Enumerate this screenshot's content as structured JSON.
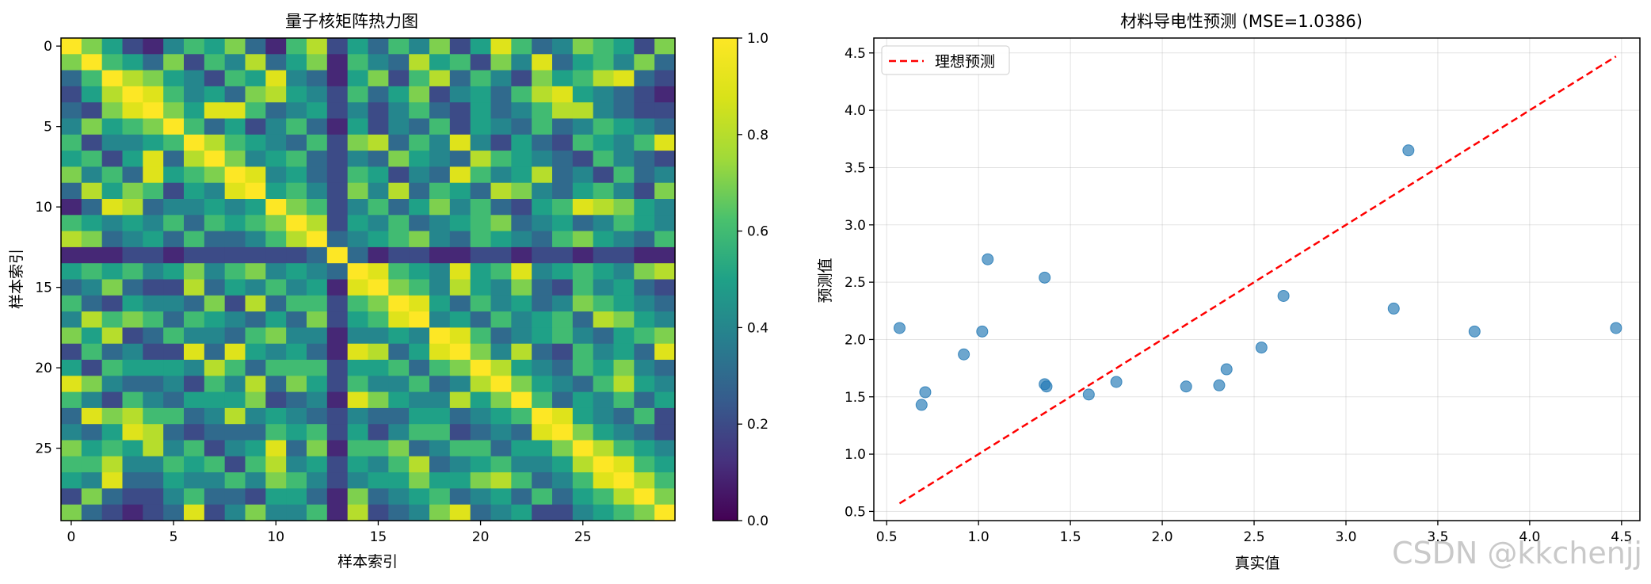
{
  "chart_data": [
    {
      "type": "heatmap",
      "title": "量子核矩阵热力图",
      "xlabel": "样本索引",
      "ylabel": "样本索引",
      "size": 30,
      "xlim": [
        -0.5,
        29.5
      ],
      "ylim": [
        29.5,
        -0.5
      ],
      "xticks": [
        0,
        5,
        10,
        15,
        20,
        25
      ],
      "yticks": [
        0,
        5,
        10,
        15,
        20,
        25
      ],
      "colormap": "viridis",
      "colorbar": {
        "min": 0.0,
        "max": 1.0,
        "ticks": [
          "0.0",
          "0.2",
          "0.4",
          "0.6",
          "0.8",
          "1.0"
        ]
      },
      "diagonal_value": 1.0,
      "values": [
        [
          1.0,
          0.7,
          0.5,
          0.2,
          0.1,
          0.4,
          0.6,
          0.5,
          0.7,
          0.3,
          0.1,
          0.6,
          0.8,
          0.2,
          0.5,
          0.3,
          0.6,
          0.4,
          0.7,
          0.2,
          0.5,
          0.9,
          0.6,
          0.3,
          0.4,
          0.7,
          0.6,
          0.5,
          0.2,
          0.7
        ],
        [
          0.7,
          1.0,
          0.6,
          0.5,
          0.3,
          0.7,
          0.2,
          0.6,
          0.4,
          0.8,
          0.3,
          0.5,
          0.7,
          0.1,
          0.6,
          0.4,
          0.3,
          0.8,
          0.5,
          0.6,
          0.2,
          0.7,
          0.4,
          0.9,
          0.3,
          0.5,
          0.6,
          0.4,
          0.7,
          0.3
        ],
        [
          0.3,
          0.6,
          1.0,
          0.8,
          0.7,
          0.5,
          0.4,
          0.2,
          0.6,
          0.5,
          0.9,
          0.4,
          0.3,
          0.1,
          0.5,
          0.7,
          0.2,
          0.6,
          0.8,
          0.3,
          0.6,
          0.4,
          0.2,
          0.7,
          0.5,
          0.6,
          0.8,
          0.9,
          0.3,
          0.2
        ],
        [
          0.2,
          0.5,
          0.8,
          1.0,
          0.9,
          0.6,
          0.4,
          0.5,
          0.3,
          0.7,
          0.8,
          0.5,
          0.4,
          0.2,
          0.6,
          0.3,
          0.5,
          0.7,
          0.2,
          0.4,
          0.5,
          0.3,
          0.6,
          0.8,
          0.9,
          0.5,
          0.4,
          0.3,
          0.2,
          0.1
        ],
        [
          0.3,
          0.2,
          0.7,
          0.9,
          1.0,
          0.7,
          0.5,
          0.9,
          0.9,
          0.6,
          0.3,
          0.4,
          0.5,
          0.2,
          0.4,
          0.2,
          0.4,
          0.6,
          0.3,
          0.2,
          0.5,
          0.3,
          0.4,
          0.6,
          0.8,
          0.8,
          0.4,
          0.3,
          0.2,
          0.2
        ],
        [
          0.4,
          0.7,
          0.5,
          0.6,
          0.7,
          1.0,
          0.6,
          0.3,
          0.5,
          0.2,
          0.4,
          0.6,
          0.3,
          0.1,
          0.5,
          0.2,
          0.4,
          0.3,
          0.6,
          0.2,
          0.5,
          0.4,
          0.3,
          0.6,
          0.3,
          0.4,
          0.6,
          0.5,
          0.4,
          0.3
        ],
        [
          0.6,
          0.2,
          0.4,
          0.4,
          0.5,
          0.6,
          1.0,
          0.8,
          0.6,
          0.5,
          0.4,
          0.3,
          0.6,
          0.2,
          0.7,
          0.8,
          0.3,
          0.6,
          0.4,
          0.9,
          0.4,
          0.2,
          0.5,
          0.3,
          0.2,
          0.6,
          0.5,
          0.4,
          0.6,
          0.9
        ],
        [
          0.5,
          0.6,
          0.2,
          0.5,
          0.9,
          0.3,
          0.8,
          1.0,
          0.7,
          0.4,
          0.5,
          0.6,
          0.3,
          0.2,
          0.4,
          0.3,
          0.7,
          0.5,
          0.4,
          0.3,
          0.8,
          0.6,
          0.5,
          0.4,
          0.3,
          0.2,
          0.6,
          0.4,
          0.3,
          0.2
        ],
        [
          0.7,
          0.4,
          0.6,
          0.3,
          0.9,
          0.5,
          0.6,
          0.7,
          1.0,
          0.9,
          0.4,
          0.5,
          0.3,
          0.2,
          0.6,
          0.5,
          0.2,
          0.4,
          0.3,
          0.9,
          0.6,
          0.4,
          0.5,
          0.8,
          0.3,
          0.4,
          0.2,
          0.6,
          0.3,
          0.4
        ],
        [
          0.3,
          0.8,
          0.5,
          0.7,
          0.6,
          0.2,
          0.5,
          0.4,
          0.9,
          1.0,
          0.5,
          0.6,
          0.4,
          0.2,
          0.7,
          0.4,
          0.8,
          0.3,
          0.6,
          0.5,
          0.3,
          0.8,
          0.7,
          0.4,
          0.3,
          0.5,
          0.6,
          0.4,
          0.2,
          0.7
        ],
        [
          0.1,
          0.3,
          0.9,
          0.8,
          0.3,
          0.4,
          0.4,
          0.5,
          0.4,
          0.5,
          1.0,
          0.7,
          0.6,
          0.2,
          0.4,
          0.6,
          0.3,
          0.5,
          0.7,
          0.4,
          0.6,
          0.3,
          0.2,
          0.5,
          0.6,
          0.9,
          0.8,
          0.7,
          0.5,
          0.4
        ],
        [
          0.6,
          0.5,
          0.4,
          0.5,
          0.4,
          0.6,
          0.3,
          0.6,
          0.5,
          0.6,
          0.7,
          1.0,
          0.8,
          0.2,
          0.5,
          0.4,
          0.6,
          0.3,
          0.4,
          0.5,
          0.6,
          0.7,
          0.3,
          0.4,
          0.5,
          0.3,
          0.4,
          0.6,
          0.5,
          0.4
        ],
        [
          0.8,
          0.7,
          0.3,
          0.4,
          0.5,
          0.3,
          0.6,
          0.3,
          0.3,
          0.4,
          0.6,
          0.8,
          1.0,
          0.3,
          0.4,
          0.5,
          0.6,
          0.7,
          0.4,
          0.3,
          0.6,
          0.5,
          0.4,
          0.3,
          0.6,
          0.7,
          0.5,
          0.4,
          0.3,
          0.6
        ],
        [
          0.1,
          0.1,
          0.1,
          0.2,
          0.2,
          0.1,
          0.2,
          0.2,
          0.2,
          0.2,
          0.2,
          0.2,
          0.3,
          1.0,
          0.3,
          0.1,
          0.2,
          0.2,
          0.1,
          0.1,
          0.2,
          0.2,
          0.1,
          0.2,
          0.2,
          0.1,
          0.2,
          0.2,
          0.1,
          0.1
        ],
        [
          0.5,
          0.6,
          0.5,
          0.6,
          0.4,
          0.5,
          0.7,
          0.4,
          0.6,
          0.7,
          0.4,
          0.5,
          0.4,
          0.3,
          1.0,
          0.9,
          0.6,
          0.5,
          0.4,
          0.9,
          0.5,
          0.6,
          0.9,
          0.4,
          0.5,
          0.6,
          0.5,
          0.4,
          0.7,
          0.8
        ],
        [
          0.3,
          0.4,
          0.7,
          0.3,
          0.2,
          0.2,
          0.8,
          0.3,
          0.5,
          0.4,
          0.6,
          0.4,
          0.5,
          0.1,
          0.9,
          1.0,
          0.7,
          0.6,
          0.4,
          0.8,
          0.5,
          0.4,
          0.7,
          0.3,
          0.2,
          0.6,
          0.4,
          0.5,
          0.3,
          0.2
        ],
        [
          0.6,
          0.3,
          0.2,
          0.5,
          0.4,
          0.4,
          0.3,
          0.7,
          0.2,
          0.8,
          0.3,
          0.6,
          0.6,
          0.2,
          0.6,
          0.7,
          1.0,
          0.9,
          0.5,
          0.3,
          0.6,
          0.4,
          0.5,
          0.3,
          0.4,
          0.7,
          0.6,
          0.5,
          0.4,
          0.3
        ],
        [
          0.4,
          0.8,
          0.6,
          0.7,
          0.6,
          0.3,
          0.6,
          0.5,
          0.4,
          0.3,
          0.5,
          0.3,
          0.7,
          0.2,
          0.5,
          0.6,
          0.9,
          1.0,
          0.4,
          0.5,
          0.3,
          0.6,
          0.4,
          0.5,
          0.6,
          0.3,
          0.8,
          0.7,
          0.5,
          0.4
        ],
        [
          0.7,
          0.5,
          0.8,
          0.2,
          0.3,
          0.6,
          0.4,
          0.4,
          0.3,
          0.6,
          0.7,
          0.4,
          0.4,
          0.1,
          0.4,
          0.4,
          0.5,
          0.4,
          1.0,
          0.9,
          0.6,
          0.3,
          0.4,
          0.5,
          0.6,
          0.4,
          0.3,
          0.5,
          0.6,
          0.7
        ],
        [
          0.2,
          0.6,
          0.3,
          0.4,
          0.2,
          0.2,
          0.9,
          0.3,
          0.9,
          0.5,
          0.4,
          0.5,
          0.3,
          0.1,
          0.9,
          0.8,
          0.3,
          0.5,
          0.9,
          1.0,
          0.7,
          0.4,
          0.8,
          0.3,
          0.2,
          0.6,
          0.4,
          0.5,
          0.3,
          0.9
        ],
        [
          0.5,
          0.2,
          0.6,
          0.5,
          0.5,
          0.5,
          0.4,
          0.8,
          0.6,
          0.3,
          0.6,
          0.6,
          0.6,
          0.2,
          0.5,
          0.5,
          0.6,
          0.3,
          0.6,
          0.7,
          1.0,
          0.8,
          0.5,
          0.4,
          0.3,
          0.6,
          0.5,
          0.7,
          0.4,
          0.3
        ],
        [
          0.9,
          0.7,
          0.4,
          0.3,
          0.3,
          0.4,
          0.2,
          0.6,
          0.4,
          0.8,
          0.3,
          0.7,
          0.5,
          0.2,
          0.6,
          0.4,
          0.4,
          0.6,
          0.3,
          0.4,
          0.8,
          1.0,
          0.7,
          0.5,
          0.4,
          0.3,
          0.6,
          0.8,
          0.5,
          0.4
        ],
        [
          0.6,
          0.4,
          0.2,
          0.6,
          0.4,
          0.3,
          0.5,
          0.5,
          0.5,
          0.7,
          0.2,
          0.3,
          0.4,
          0.1,
          0.9,
          0.7,
          0.5,
          0.4,
          0.4,
          0.8,
          0.5,
          0.7,
          1.0,
          0.6,
          0.3,
          0.5,
          0.4,
          0.6,
          0.3,
          0.5
        ],
        [
          0.3,
          0.9,
          0.7,
          0.8,
          0.6,
          0.6,
          0.3,
          0.4,
          0.8,
          0.4,
          0.5,
          0.4,
          0.3,
          0.2,
          0.4,
          0.3,
          0.3,
          0.5,
          0.5,
          0.3,
          0.4,
          0.5,
          0.6,
          1.0,
          0.9,
          0.5,
          0.4,
          0.3,
          0.6,
          0.2
        ],
        [
          0.4,
          0.3,
          0.5,
          0.9,
          0.8,
          0.3,
          0.2,
          0.3,
          0.3,
          0.3,
          0.6,
          0.5,
          0.6,
          0.2,
          0.5,
          0.2,
          0.4,
          0.6,
          0.6,
          0.2,
          0.3,
          0.4,
          0.3,
          0.9,
          1.0,
          0.7,
          0.5,
          0.4,
          0.3,
          0.2
        ],
        [
          0.7,
          0.5,
          0.6,
          0.5,
          0.8,
          0.4,
          0.6,
          0.2,
          0.4,
          0.5,
          0.9,
          0.3,
          0.7,
          0.1,
          0.6,
          0.6,
          0.7,
          0.3,
          0.4,
          0.6,
          0.6,
          0.3,
          0.5,
          0.5,
          0.7,
          1.0,
          0.8,
          0.6,
          0.5,
          0.4
        ],
        [
          0.6,
          0.6,
          0.8,
          0.4,
          0.4,
          0.6,
          0.5,
          0.6,
          0.2,
          0.6,
          0.8,
          0.4,
          0.5,
          0.2,
          0.5,
          0.4,
          0.6,
          0.8,
          0.3,
          0.4,
          0.5,
          0.6,
          0.4,
          0.4,
          0.5,
          0.8,
          1.0,
          0.9,
          0.6,
          0.5
        ],
        [
          0.5,
          0.4,
          0.9,
          0.3,
          0.3,
          0.5,
          0.4,
          0.4,
          0.6,
          0.4,
          0.7,
          0.6,
          0.4,
          0.2,
          0.4,
          0.5,
          0.5,
          0.7,
          0.5,
          0.5,
          0.7,
          0.8,
          0.6,
          0.3,
          0.4,
          0.6,
          0.9,
          1.0,
          0.8,
          0.6
        ],
        [
          0.2,
          0.7,
          0.3,
          0.2,
          0.2,
          0.4,
          0.6,
          0.3,
          0.3,
          0.2,
          0.5,
          0.5,
          0.3,
          0.1,
          0.7,
          0.3,
          0.4,
          0.5,
          0.6,
          0.3,
          0.4,
          0.5,
          0.3,
          0.6,
          0.3,
          0.5,
          0.6,
          0.8,
          1.0,
          0.7
        ],
        [
          0.7,
          0.3,
          0.2,
          0.1,
          0.2,
          0.3,
          0.9,
          0.2,
          0.4,
          0.7,
          0.4,
          0.4,
          0.6,
          0.1,
          0.8,
          0.2,
          0.3,
          0.4,
          0.7,
          0.9,
          0.3,
          0.4,
          0.5,
          0.2,
          0.2,
          0.4,
          0.5,
          0.6,
          0.7,
          1.0
        ]
      ]
    },
    {
      "type": "scatter",
      "title": "材料导电性预测 (MSE=1.0386)",
      "xlabel": "真实值",
      "ylabel": "预测值",
      "xlim": [
        0.43,
        4.6
      ],
      "ylim": [
        0.42,
        4.63
      ],
      "xticks": [
        "0.5",
        "1.0",
        "1.5",
        "2.0",
        "2.5",
        "3.0",
        "3.5",
        "4.0",
        "4.5"
      ],
      "yticks": [
        "0.5",
        "1.0",
        "1.5",
        "2.0",
        "2.5",
        "3.0",
        "3.5",
        "4.0",
        "4.5"
      ],
      "grid": true,
      "legend": {
        "placement": "top-left",
        "entries": [
          "理想预测"
        ]
      },
      "ideal_line": {
        "name": "理想预测",
        "x": [
          0.57,
          4.47
        ],
        "y": [
          0.57,
          4.47
        ],
        "color": "#ff0000",
        "style": "dashed"
      },
      "point_color": "#1f77b4",
      "points": [
        {
          "x": 0.57,
          "y": 2.1
        },
        {
          "x": 0.69,
          "y": 1.43
        },
        {
          "x": 0.71,
          "y": 1.54
        },
        {
          "x": 0.92,
          "y": 1.87
        },
        {
          "x": 1.02,
          "y": 2.07
        },
        {
          "x": 1.05,
          "y": 2.7
        },
        {
          "x": 1.36,
          "y": 2.54
        },
        {
          "x": 1.36,
          "y": 1.61
        },
        {
          "x": 1.37,
          "y": 1.59
        },
        {
          "x": 1.6,
          "y": 1.52
        },
        {
          "x": 1.75,
          "y": 1.63
        },
        {
          "x": 2.13,
          "y": 1.59
        },
        {
          "x": 2.31,
          "y": 1.6
        },
        {
          "x": 2.35,
          "y": 1.74
        },
        {
          "x": 2.54,
          "y": 1.93
        },
        {
          "x": 2.66,
          "y": 2.38
        },
        {
          "x": 3.26,
          "y": 2.27
        },
        {
          "x": 3.34,
          "y": 3.65
        },
        {
          "x": 3.7,
          "y": 2.07
        },
        {
          "x": 4.47,
          "y": 2.1
        }
      ]
    }
  ],
  "watermark": "CSDN @kkchenjj"
}
